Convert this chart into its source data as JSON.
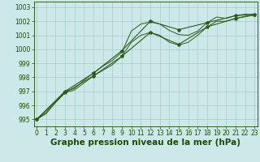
{
  "hours": [
    0,
    1,
    2,
    3,
    4,
    5,
    6,
    7,
    8,
    9,
    10,
    11,
    12,
    13,
    14,
    15,
    16,
    17,
    18,
    19,
    20,
    21,
    22,
    23
  ],
  "line1_y": [
    995.0,
    995.5,
    996.3,
    997.0,
    997.2,
    997.8,
    998.3,
    998.8,
    999.2,
    999.8,
    1001.3,
    1001.8,
    1001.95,
    1001.8,
    1001.35,
    1001.05,
    1001.0,
    1001.3,
    1001.9,
    1002.3,
    1002.2,
    1002.4,
    1002.5,
    1002.5
  ],
  "line2_y": [
    995.0,
    995.4,
    996.2,
    996.9,
    997.1,
    997.6,
    998.1,
    998.5,
    998.9,
    999.5,
    1000.5,
    1001.0,
    1001.2,
    1001.0,
    1000.5,
    1000.3,
    1000.5,
    1001.0,
    1001.6,
    1002.0,
    1002.0,
    1002.2,
    1002.35,
    1002.45
  ],
  "line3_x": [
    0,
    3,
    6,
    9,
    12,
    15,
    18,
    21,
    23
  ],
  "line3_y": [
    995.0,
    997.0,
    998.3,
    999.9,
    1002.0,
    1001.4,
    1001.9,
    1002.4,
    1002.5
  ],
  "line4_x": [
    0,
    3,
    6,
    9,
    12,
    15,
    18,
    21,
    23
  ],
  "line4_y": [
    995.0,
    996.9,
    998.1,
    999.5,
    1001.2,
    1000.35,
    1001.6,
    1002.2,
    1002.45
  ],
  "bg_color": "#cce8e8",
  "grid_color": "#aacccc",
  "line_color": "#2d5a1b",
  "ylim": [
    994.5,
    1003.4
  ],
  "yticks": [
    995,
    996,
    997,
    998,
    999,
    1000,
    1001,
    1002,
    1003
  ],
  "xticks": [
    0,
    1,
    2,
    3,
    4,
    5,
    6,
    7,
    8,
    9,
    10,
    11,
    12,
    13,
    14,
    15,
    16,
    17,
    18,
    19,
    20,
    21,
    22,
    23
  ],
  "xlabel": "Graphe pression niveau de la mer (hPa)",
  "xlabel_color": "#1a4d00",
  "tick_color": "#1a4d00",
  "xlabel_fontsize": 7.5,
  "tick_fontsize": 5.5,
  "marker_style": "*",
  "markersize": 3.0,
  "linewidth_smooth": 0.7,
  "linewidth_marked": 0.8
}
